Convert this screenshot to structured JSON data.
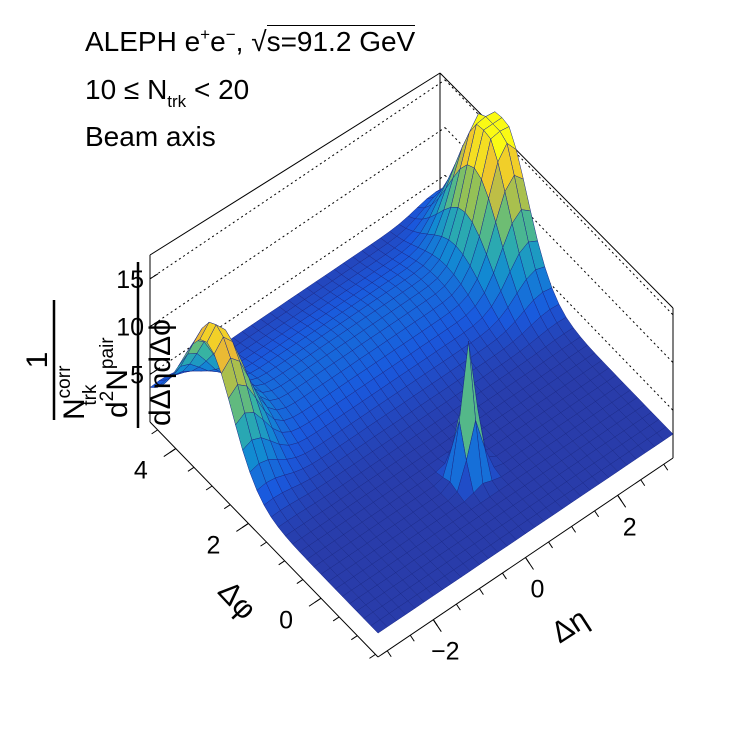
{
  "header": {
    "line1": {
      "experiment": "ALEPH e",
      "plus": "+",
      "e": "e",
      "minus": "−",
      "comma": ",",
      "sqrt": "√",
      "energy": "s=91.2 GeV"
    },
    "line2": {
      "lead": "10 ≤ N",
      "sub": "trk",
      "tail": " < 20"
    },
    "line3": "Beam axis"
  },
  "chart_data": {
    "type": "surface3d",
    "title": "",
    "xlabel": "Δη",
    "ylabel": "Δφ",
    "zlabel": {
      "numerator": "1",
      "denominator_main": "N",
      "denominator_sup": "corr",
      "denominator_sub": "trk",
      "frac_top": "d",
      "frac_top_sup": "2",
      "frac_top_N": "N",
      "frac_top_N_sup": "pair",
      "frac_bottom": "dΔηdΔϕ"
    },
    "x_ticks": [
      -2,
      0,
      2
    ],
    "y_ticks": [
      0,
      2,
      4
    ],
    "z_ticks": [
      5,
      10,
      15
    ],
    "xlim": [
      -3.2,
      3.2
    ],
    "ylim": [
      -1.57,
      4.71
    ],
    "zlim": [
      0,
      17.5
    ],
    "grid": true,
    "colormap": "parula (blue to yellow)",
    "surface_peaks": [
      {
        "delta_eta": 0.0,
        "delta_phi": 0.0,
        "value": 16.5
      },
      {
        "delta_eta": -3.0,
        "delta_phi": 3.14,
        "value": 13.5
      },
      {
        "delta_eta": 3.0,
        "delta_phi": 3.14,
        "value": 17.0
      }
    ],
    "baseline_value": 2.5
  }
}
